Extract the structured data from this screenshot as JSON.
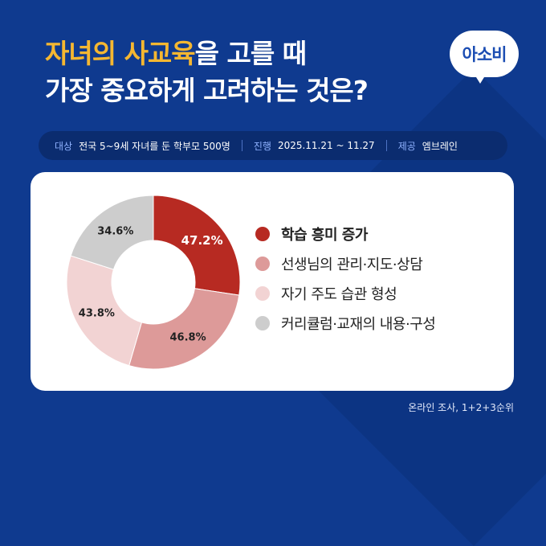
{
  "title": {
    "highlight": "자녀의 사교육",
    "line1_rest": "을 고를 때",
    "line2": "가장 중요하게 고려하는 것은?"
  },
  "logo": {
    "text": "아소비"
  },
  "info": {
    "target_label": "대상",
    "target_value": "전국 5~9세 자녀를 둔 학부모 500명",
    "period_label": "진행",
    "period_value": "2025.11.21 ~ 11.27",
    "provider_label": "제공",
    "provider_value": "엠브레인"
  },
  "colors": {
    "background": "#0f3a8f",
    "highlight": "#f5b731",
    "series": [
      "#b72a22",
      "#dd9a99",
      "#f2d3d3",
      "#cdcdcd"
    ]
  },
  "chart_data": {
    "type": "pie",
    "variant": "donut",
    "categories": [
      "학습 흥미 증가",
      "선생님의 관리·지도·상담",
      "자기 주도 습관 형성",
      "커리큘럼·교재의 내용·구성"
    ],
    "values": [
      47.2,
      46.8,
      43.8,
      34.6
    ],
    "data_labels": [
      "47.2%",
      "46.8%",
      "43.8%",
      "34.6%"
    ],
    "legend_placement": "right"
  },
  "footnote": "온라인 조사, 1+2+3순위"
}
